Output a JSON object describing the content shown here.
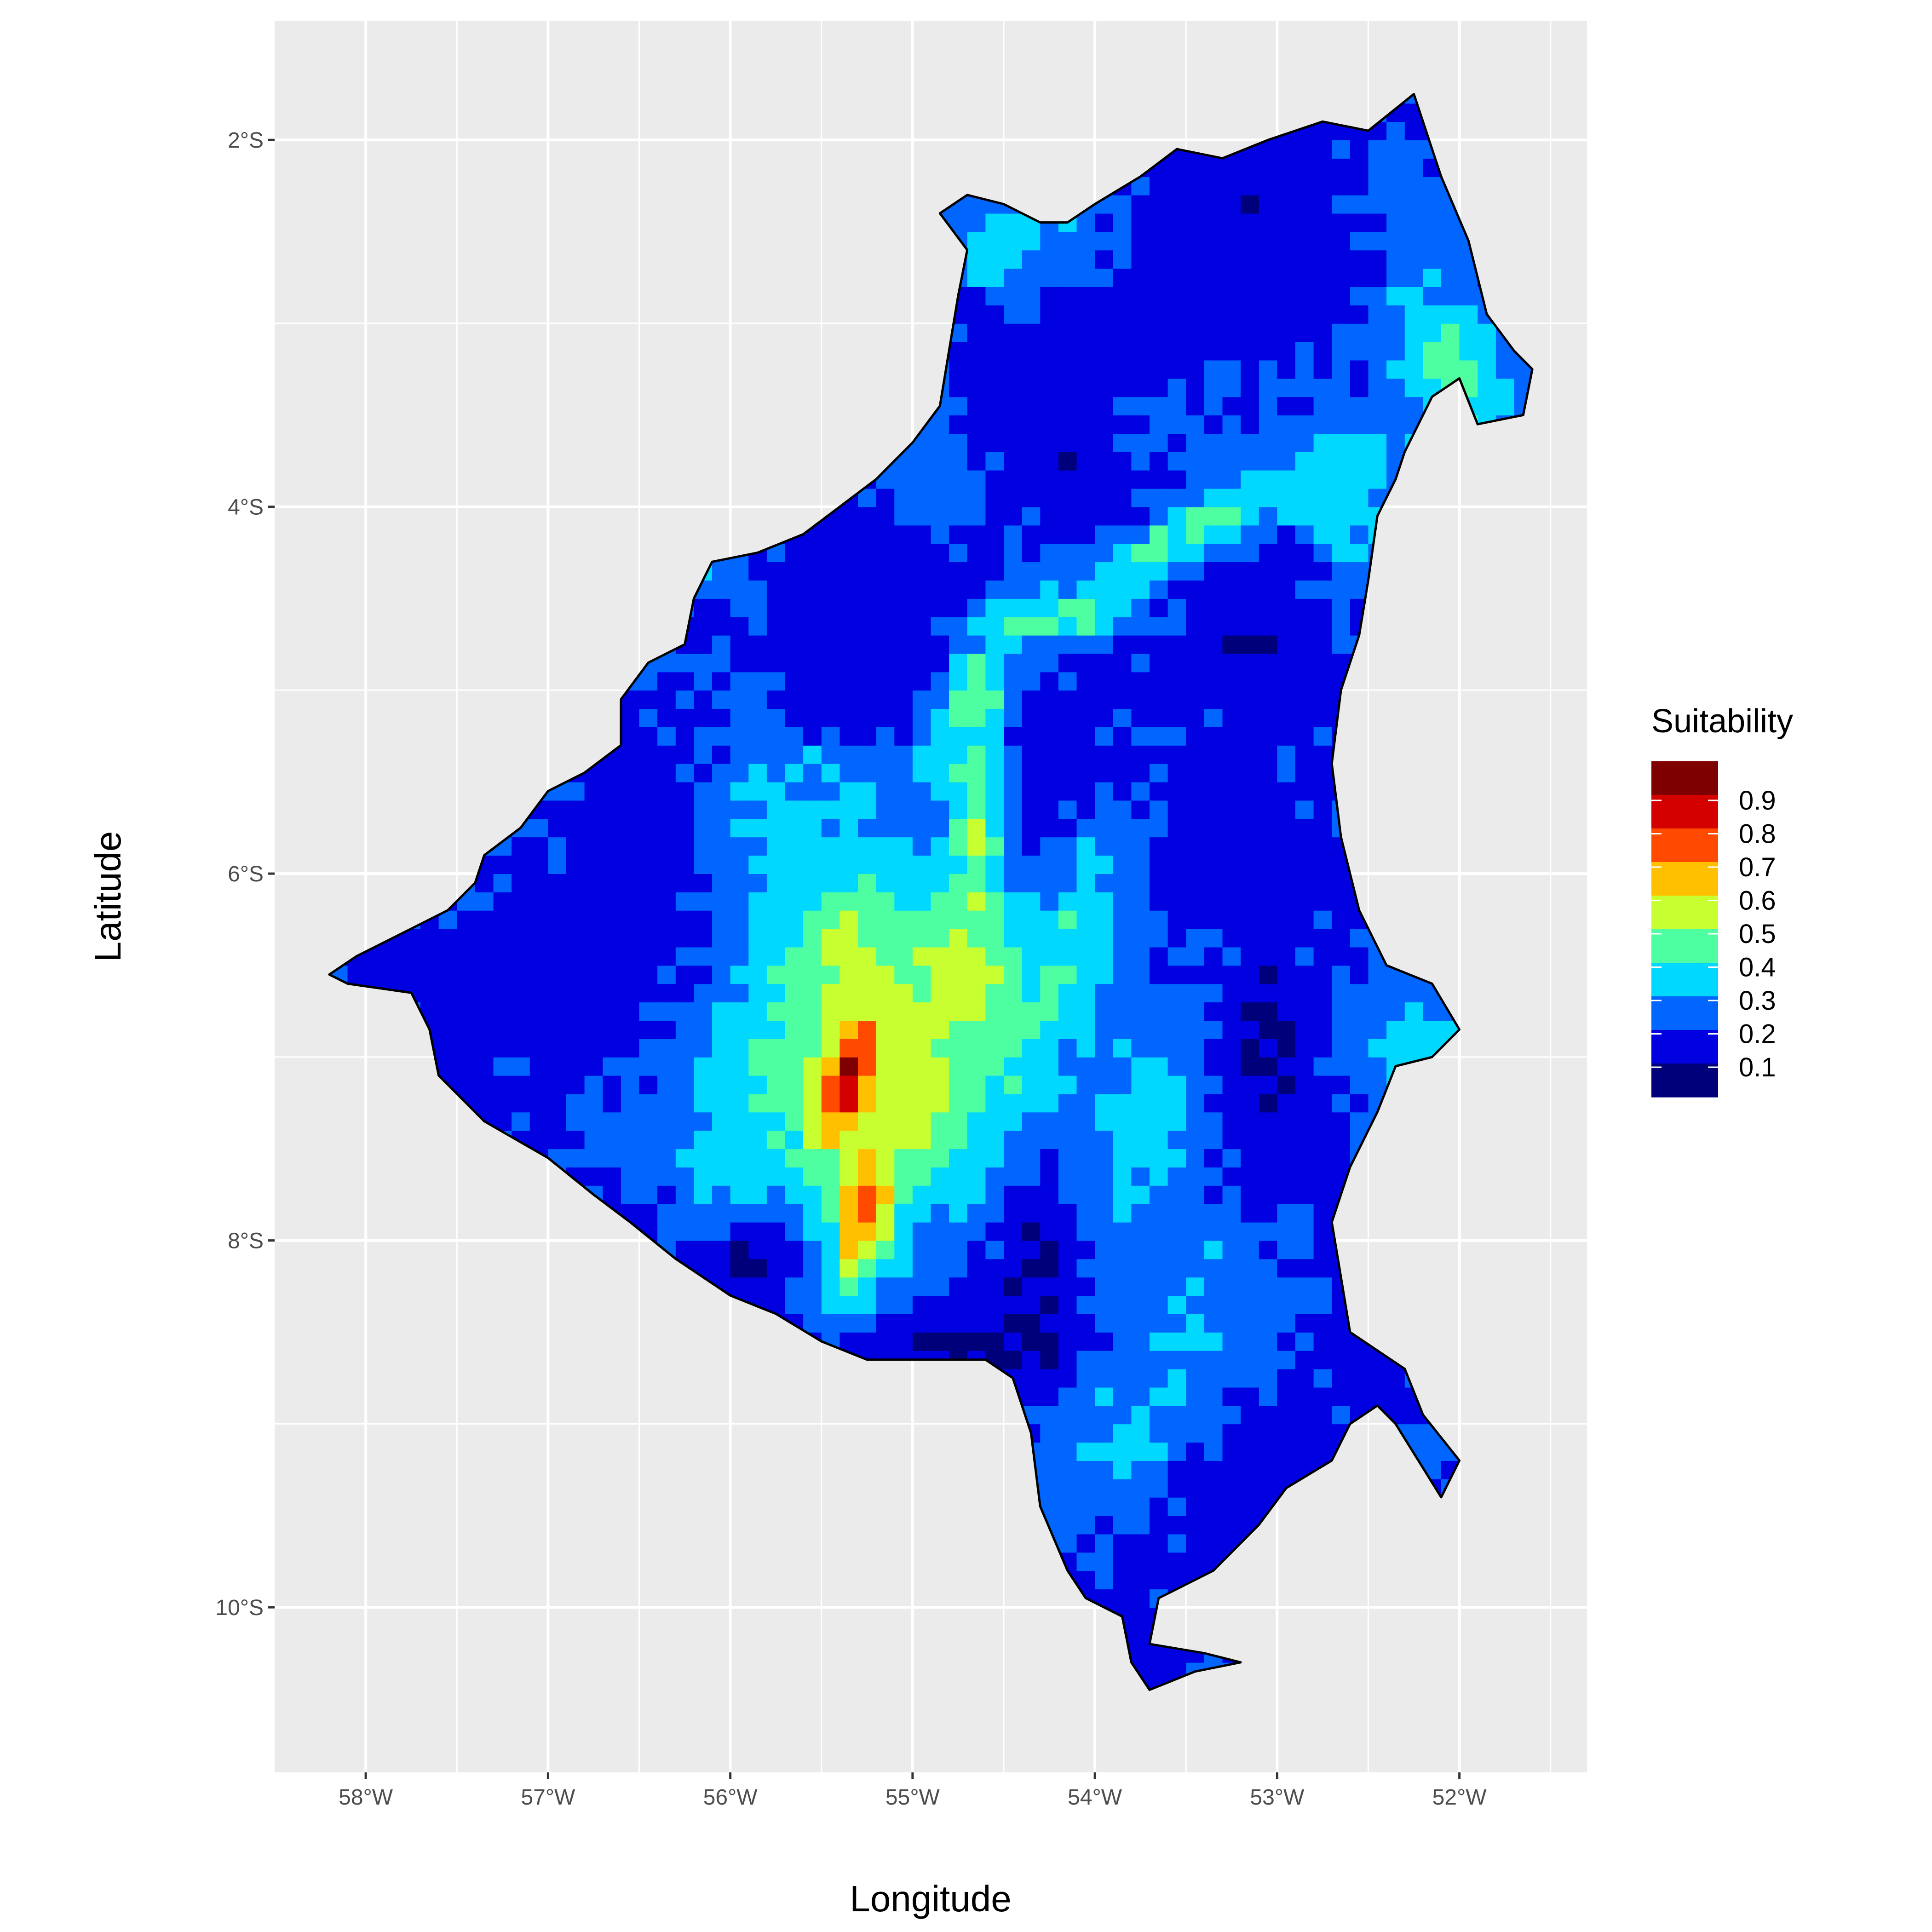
{
  "chart_data": {
    "type": "heatmap",
    "title": "",
    "xlabel": "Longitude",
    "ylabel": "Latitude",
    "xlim": [
      -58.5,
      -51.3
    ],
    "ylim": [
      -10.9,
      -1.35
    ],
    "x_ticks": [
      {
        "value": -58,
        "label": "58°W"
      },
      {
        "value": -57,
        "label": "57°W"
      },
      {
        "value": -56,
        "label": "56°W"
      },
      {
        "value": -55,
        "label": "55°W"
      },
      {
        "value": -54,
        "label": "54°W"
      },
      {
        "value": -53,
        "label": "53°W"
      },
      {
        "value": -52,
        "label": "52°W"
      }
    ],
    "y_ticks": [
      {
        "value": -2,
        "label": "2°S"
      },
      {
        "value": -4,
        "label": "4°S"
      },
      {
        "value": -6,
        "label": "6°S"
      },
      {
        "value": -8,
        "label": "8°S"
      },
      {
        "value": -10,
        "label": "10°S"
      }
    ],
    "grid": true,
    "legend": {
      "title": "Suitability",
      "position": "right",
      "labels": [
        "0.9",
        "0.8",
        "0.7",
        "0.6",
        "0.5",
        "0.4",
        "0.3",
        "0.2",
        "0.1"
      ],
      "colors": [
        "#7f0000",
        "#d40000",
        "#ff4a00",
        "#ffc000",
        "#c7ff30",
        "#4dffa0",
        "#00d8ff",
        "#0066ff",
        "#0000e0",
        "#00007a"
      ]
    },
    "boundary": [
      [
        -52.25,
        -1.75
      ],
      [
        -52.1,
        -2.2
      ],
      [
        -51.95,
        -2.55
      ],
      [
        -51.85,
        -2.95
      ],
      [
        -51.7,
        -3.15
      ],
      [
        -51.6,
        -3.25
      ],
      [
        -51.65,
        -3.5
      ],
      [
        -51.9,
        -3.55
      ],
      [
        -52.0,
        -3.3
      ],
      [
        -52.15,
        -3.4
      ],
      [
        -52.3,
        -3.7
      ],
      [
        -52.35,
        -3.85
      ],
      [
        -52.45,
        -4.05
      ],
      [
        -52.5,
        -4.4
      ],
      [
        -52.55,
        -4.7
      ],
      [
        -52.65,
        -5.0
      ],
      [
        -52.7,
        -5.4
      ],
      [
        -52.65,
        -5.8
      ],
      [
        -52.55,
        -6.2
      ],
      [
        -52.4,
        -6.5
      ],
      [
        -52.15,
        -6.6
      ],
      [
        -52.0,
        -6.85
      ],
      [
        -52.15,
        -7.0
      ],
      [
        -52.35,
        -7.05
      ],
      [
        -52.45,
        -7.3
      ],
      [
        -52.6,
        -7.6
      ],
      [
        -52.7,
        -7.9
      ],
      [
        -52.65,
        -8.2
      ],
      [
        -52.6,
        -8.5
      ],
      [
        -52.45,
        -8.6
      ],
      [
        -52.3,
        -8.7
      ],
      [
        -52.2,
        -8.95
      ],
      [
        -52.0,
        -9.2
      ],
      [
        -52.1,
        -9.4
      ],
      [
        -52.35,
        -9.0
      ],
      [
        -52.45,
        -8.9
      ],
      [
        -52.6,
        -9.0
      ],
      [
        -52.7,
        -9.2
      ],
      [
        -52.95,
        -9.35
      ],
      [
        -53.1,
        -9.55
      ],
      [
        -53.35,
        -9.8
      ],
      [
        -53.65,
        -9.95
      ],
      [
        -53.7,
        -10.2
      ],
      [
        -53.4,
        -10.25
      ],
      [
        -53.2,
        -10.3
      ],
      [
        -53.45,
        -10.35
      ],
      [
        -53.7,
        -10.45
      ],
      [
        -53.8,
        -10.3
      ],
      [
        -53.85,
        -10.05
      ],
      [
        -54.05,
        -9.95
      ],
      [
        -54.15,
        -9.8
      ],
      [
        -54.3,
        -9.45
      ],
      [
        -54.35,
        -9.05
      ],
      [
        -54.45,
        -8.75
      ],
      [
        -54.6,
        -8.65
      ],
      [
        -54.9,
        -8.65
      ],
      [
        -55.25,
        -8.65
      ],
      [
        -55.5,
        -8.55
      ],
      [
        -55.75,
        -8.4
      ],
      [
        -56.0,
        -8.3
      ],
      [
        -56.3,
        -8.1
      ],
      [
        -56.55,
        -7.9
      ],
      [
        -56.75,
        -7.75
      ],
      [
        -57.0,
        -7.55
      ],
      [
        -57.35,
        -7.35
      ],
      [
        -57.6,
        -7.1
      ],
      [
        -57.65,
        -6.85
      ],
      [
        -57.75,
        -6.65
      ],
      [
        -58.1,
        -6.6
      ],
      [
        -58.2,
        -6.55
      ],
      [
        -58.05,
        -6.45
      ],
      [
        -57.75,
        -6.3
      ],
      [
        -57.55,
        -6.2
      ],
      [
        -57.4,
        -6.05
      ],
      [
        -57.35,
        -5.9
      ],
      [
        -57.15,
        -5.75
      ],
      [
        -57.0,
        -5.55
      ],
      [
        -56.8,
        -5.45
      ],
      [
        -56.6,
        -5.3
      ],
      [
        -56.6,
        -5.05
      ],
      [
        -56.45,
        -4.85
      ],
      [
        -56.25,
        -4.75
      ],
      [
        -56.2,
        -4.5
      ],
      [
        -56.1,
        -4.3
      ],
      [
        -55.85,
        -4.25
      ],
      [
        -55.6,
        -4.15
      ],
      [
        -55.4,
        -4.0
      ],
      [
        -55.2,
        -3.85
      ],
      [
        -55.0,
        -3.65
      ],
      [
        -54.85,
        -3.45
      ],
      [
        -54.8,
        -3.15
      ],
      [
        -54.75,
        -2.85
      ],
      [
        -54.7,
        -2.6
      ],
      [
        -54.85,
        -2.4
      ],
      [
        -54.7,
        -2.3
      ],
      [
        -54.5,
        -2.35
      ],
      [
        -54.3,
        -2.45
      ],
      [
        -54.15,
        -2.45
      ],
      [
        -54.0,
        -2.35
      ],
      [
        -53.75,
        -2.2
      ],
      [
        -53.55,
        -2.05
      ],
      [
        -53.3,
        -2.1
      ],
      [
        -53.05,
        -2.0
      ],
      [
        -52.75,
        -1.9
      ],
      [
        -52.5,
        -1.95
      ],
      [
        -52.25,
        -1.75
      ]
    ],
    "hotspots": [
      {
        "lon": -55.35,
        "lat": -7.1,
        "value": 0.9,
        "sx": 0.15,
        "sy": 0.35,
        "rot": 0.35
      },
      {
        "lon": -55.25,
        "lat": -7.8,
        "value": 0.75,
        "sx": 0.12,
        "sy": 0.35,
        "rot": 0.2
      },
      {
        "lon": -55.4,
        "lat": -6.5,
        "value": 0.55,
        "sx": 0.2,
        "sy": 0.4,
        "rot": 0.2
      },
      {
        "lon": -55.0,
        "lat": -7.2,
        "value": 0.55,
        "sx": 0.35,
        "sy": 0.45,
        "rot": 0.0
      },
      {
        "lon": -54.75,
        "lat": -6.55,
        "value": 0.55,
        "sx": 0.3,
        "sy": 0.35,
        "rot": -0.5
      },
      {
        "lon": -54.65,
        "lat": -5.9,
        "value": 0.5,
        "sx": 0.12,
        "sy": 0.55,
        "rot": 0.0
      },
      {
        "lon": -54.65,
        "lat": -4.95,
        "value": 0.55,
        "sx": 0.12,
        "sy": 0.35,
        "rot": 0.4
      },
      {
        "lon": -54.3,
        "lat": -4.6,
        "value": 0.6,
        "sx": 0.35,
        "sy": 0.08,
        "rot": 0.0
      },
      {
        "lon": -53.5,
        "lat": -4.15,
        "value": 0.45,
        "sx": 0.55,
        "sy": 0.12,
        "rot": -0.5
      },
      {
        "lon": -55.8,
        "lat": -7.0,
        "value": 0.45,
        "sx": 0.3,
        "sy": 0.7,
        "rot": 0.3
      },
      {
        "lon": -56.6,
        "lat": -7.25,
        "value": 0.35,
        "sx": 0.45,
        "sy": 0.25,
        "rot": 0.0
      },
      {
        "lon": -55.7,
        "lat": -5.8,
        "value": 0.35,
        "sx": 0.35,
        "sy": 0.4,
        "rot": 0.0
      },
      {
        "lon": -54.2,
        "lat": -6.5,
        "value": 0.4,
        "sx": 0.2,
        "sy": 0.7,
        "rot": 0.4
      },
      {
        "lon": -53.7,
        "lat": -7.4,
        "value": 0.35,
        "sx": 0.25,
        "sy": 0.6,
        "rot": 0.3
      },
      {
        "lon": -53.5,
        "lat": -8.4,
        "value": 0.3,
        "sx": 0.35,
        "sy": 0.35,
        "rot": 0.0
      },
      {
        "lon": -53.8,
        "lat": -9.0,
        "value": 0.3,
        "sx": 0.4,
        "sy": 0.3,
        "rot": -0.6
      },
      {
        "lon": -54.4,
        "lat": -2.6,
        "value": 0.4,
        "sx": 0.35,
        "sy": 0.18,
        "rot": 0.0
      },
      {
        "lon": -52.05,
        "lat": -3.3,
        "value": 0.45,
        "sx": 0.25,
        "sy": 0.45,
        "rot": -0.3
      },
      {
        "lon": -52.65,
        "lat": -3.9,
        "value": 0.4,
        "sx": 0.2,
        "sy": 0.3,
        "rot": 0.0
      },
      {
        "lon": -52.1,
        "lat": -6.95,
        "value": 0.35,
        "sx": 0.35,
        "sy": 0.25,
        "rot": 0.0
      },
      {
        "lon": -54.9,
        "lat": -4.0,
        "value": 0.3,
        "sx": 0.2,
        "sy": 0.25,
        "rot": 0.0
      },
      {
        "lon": -53.6,
        "lat": -3.45,
        "value": 0.3,
        "sx": 0.25,
        "sy": 0.15,
        "rot": 0.0
      },
      {
        "lon": -56.1,
        "lat": -4.35,
        "value": 0.35,
        "sx": 0.25,
        "sy": 0.1,
        "rot": 0.0
      }
    ],
    "lows": [
      {
        "lon": -53.1,
        "lat": -7.0,
        "value": 0.08,
        "sx": 0.15,
        "sy": 0.35
      },
      {
        "lon": -54.3,
        "lat": -8.3,
        "value": 0.08,
        "sx": 0.15,
        "sy": 0.35
      },
      {
        "lon": -54.8,
        "lat": -8.6,
        "value": 0.08,
        "sx": 0.45,
        "sy": 0.12
      },
      {
        "lon": -55.9,
        "lat": -8.1,
        "value": 0.08,
        "sx": 0.2,
        "sy": 0.12
      },
      {
        "lon": -53.3,
        "lat": -5.9,
        "value": 0.1,
        "sx": 0.25,
        "sy": 0.3
      },
      {
        "lon": -53.6,
        "lat": -3.0,
        "value": 0.15,
        "sx": 0.6,
        "sy": 0.4
      },
      {
        "lon": -56.8,
        "lat": -6.8,
        "value": 0.15,
        "sx": 0.5,
        "sy": 0.5
      },
      {
        "lon": -55.2,
        "lat": -4.5,
        "value": 0.15,
        "sx": 0.6,
        "sy": 0.35
      }
    ]
  }
}
